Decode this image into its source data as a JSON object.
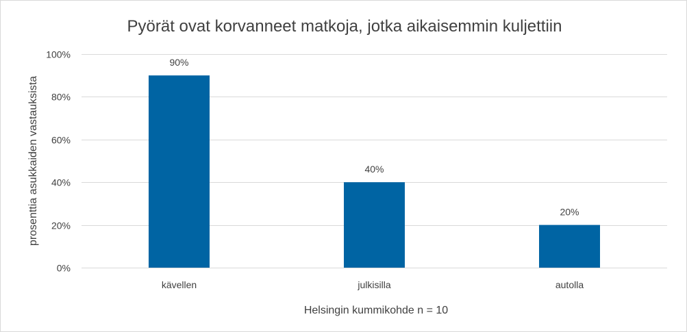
{
  "chart_data": {
    "type": "bar",
    "title": "Pyörät ovat korvanneet matkoja, jotka aikaisemmin kuljettiin",
    "xlabel": "Helsingin kummikohde n = 10",
    "ylabel": "prosenttia asukkaiden vastauksista",
    "categories": [
      "kävellen",
      "julkisilla",
      "autolla"
    ],
    "values": [
      90,
      40,
      20
    ],
    "data_labels": [
      "90%",
      "40%",
      "20%"
    ],
    "y_ticks": [
      0,
      20,
      40,
      60,
      80,
      100
    ],
    "y_tick_labels": [
      "0%",
      "20%",
      "40%",
      "60%",
      "80%",
      "100%"
    ],
    "ylim": [
      0,
      100
    ],
    "grid": true,
    "legend": "none",
    "bar_color": "#0064a3",
    "grid_color": "#d9d9d9"
  }
}
